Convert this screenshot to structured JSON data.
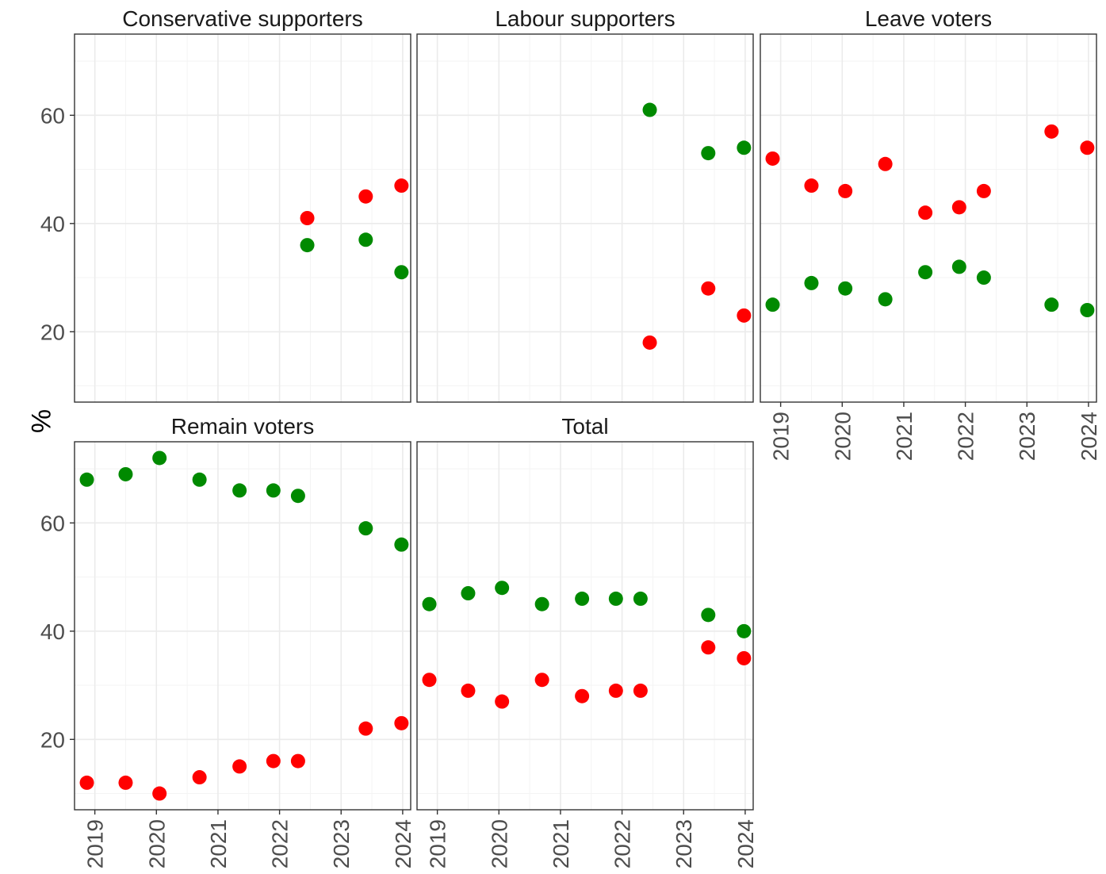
{
  "y_axis_label": "%",
  "colors": {
    "green": "#008a00",
    "red": "#ff0000"
  },
  "chart_data": [
    {
      "type": "scatter",
      "title": "Conservative supporters",
      "ylabel": "%",
      "ylim": [
        7,
        75
      ],
      "yticks": [
        20,
        40,
        60
      ],
      "xlim": [
        2018.67,
        2024.13
      ],
      "xticks": [
        "2019",
        "2020",
        "2021",
        "2022",
        "2023",
        "2024"
      ],
      "series": [
        {
          "color": "#008a00",
          "x": [
            2022.45,
            2023.4,
            2023.98
          ],
          "y": [
            36,
            37,
            31
          ]
        },
        {
          "color": "#ff0000",
          "x": [
            2022.45,
            2023.4,
            2023.98
          ],
          "y": [
            41,
            45,
            47
          ]
        }
      ]
    },
    {
      "type": "scatter",
      "title": "Labour supporters",
      "ylabel": "%",
      "ylim": [
        7,
        75
      ],
      "yticks": [
        20,
        40,
        60
      ],
      "xlim": [
        2018.67,
        2024.13
      ],
      "xticks": [
        "2019",
        "2020",
        "2021",
        "2022",
        "2023",
        "2024"
      ],
      "series": [
        {
          "color": "#008a00",
          "x": [
            2022.45,
            2023.4,
            2023.98
          ],
          "y": [
            61,
            53,
            54
          ]
        },
        {
          "color": "#ff0000",
          "x": [
            2022.45,
            2023.4,
            2023.98
          ],
          "y": [
            18,
            28,
            23
          ]
        }
      ]
    },
    {
      "type": "scatter",
      "title": "Leave voters",
      "ylabel": "%",
      "ylim": [
        7,
        75
      ],
      "yticks": [
        20,
        40,
        60
      ],
      "xlim": [
        2018.67,
        2024.13
      ],
      "xticks": [
        "2019",
        "2020",
        "2021",
        "2022",
        "2023",
        "2024"
      ],
      "series": [
        {
          "color": "#008a00",
          "x": [
            2018.87,
            2019.5,
            2020.05,
            2020.7,
            2021.35,
            2021.9,
            2022.3,
            2023.4,
            2023.98
          ],
          "y": [
            25,
            29,
            28,
            26,
            31,
            32,
            30,
            25,
            24
          ]
        },
        {
          "color": "#ff0000",
          "x": [
            2018.87,
            2019.5,
            2020.05,
            2020.7,
            2021.35,
            2021.9,
            2022.3,
            2023.4,
            2023.98
          ],
          "y": [
            52,
            47,
            46,
            51,
            42,
            43,
            46,
            57,
            54
          ]
        }
      ]
    },
    {
      "type": "scatter",
      "title": "Remain voters",
      "ylabel": "%",
      "ylim": [
        7,
        75
      ],
      "yticks": [
        20,
        40,
        60
      ],
      "xlim": [
        2018.67,
        2024.13
      ],
      "xticks": [
        "2019",
        "2020",
        "2021",
        "2022",
        "2023",
        "2024"
      ],
      "series": [
        {
          "color": "#008a00",
          "x": [
            2018.87,
            2019.5,
            2020.05,
            2020.7,
            2021.35,
            2021.9,
            2022.3,
            2023.4,
            2023.98
          ],
          "y": [
            68,
            69,
            72,
            68,
            66,
            66,
            65,
            59,
            56
          ]
        },
        {
          "color": "#ff0000",
          "x": [
            2018.87,
            2019.5,
            2020.05,
            2020.7,
            2021.35,
            2021.9,
            2022.3,
            2023.4,
            2023.98
          ],
          "y": [
            12,
            12,
            10,
            13,
            15,
            16,
            16,
            22,
            23
          ]
        }
      ]
    },
    {
      "type": "scatter",
      "title": "Total",
      "ylabel": "%",
      "ylim": [
        7,
        75
      ],
      "yticks": [
        20,
        40,
        60
      ],
      "xlim": [
        2018.67,
        2024.13
      ],
      "xticks": [
        "2019",
        "2020",
        "2021",
        "2022",
        "2023",
        "2024"
      ],
      "series": [
        {
          "color": "#008a00",
          "x": [
            2018.87,
            2019.5,
            2020.05,
            2020.7,
            2021.35,
            2021.9,
            2022.3,
            2023.4,
            2023.98
          ],
          "y": [
            45,
            47,
            48,
            45,
            46,
            46,
            46,
            43,
            40
          ]
        },
        {
          "color": "#ff0000",
          "x": [
            2018.87,
            2019.5,
            2020.05,
            2020.7,
            2021.35,
            2021.9,
            2022.3,
            2023.4,
            2023.98
          ],
          "y": [
            31,
            29,
            27,
            31,
            28,
            29,
            29,
            37,
            35
          ]
        }
      ]
    }
  ]
}
